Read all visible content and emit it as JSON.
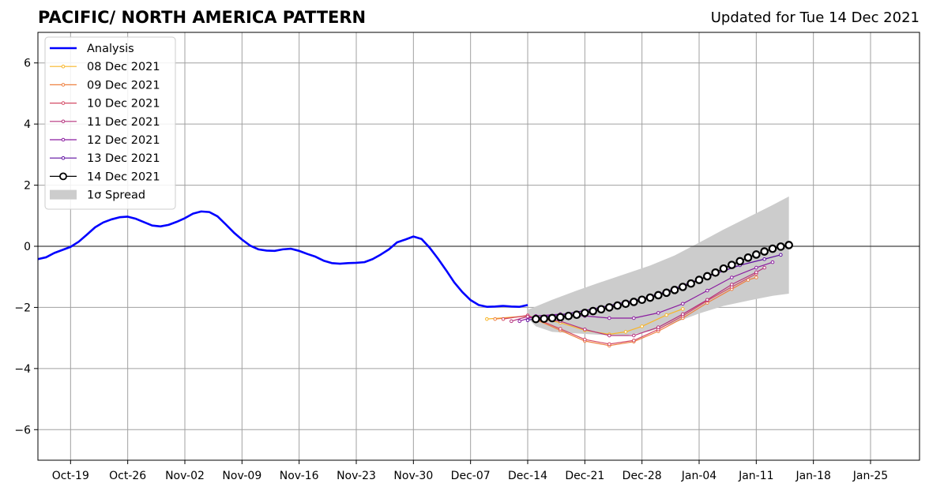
{
  "chart_data": {
    "type": "line",
    "title": "PACIFIC/ NORTH AMERICA PATTERN",
    "subtitle": "Updated for Tue 14 Dec 2021",
    "xlabel": "",
    "ylabel": "",
    "ylim": [
      -7,
      7
    ],
    "xlim": [
      "2021-10-15",
      "2022-01-31"
    ],
    "yticks": [
      "6",
      "4",
      "2",
      "0",
      "−2",
      "−4",
      "−6"
    ],
    "ytick_values": [
      6,
      4,
      2,
      0,
      -2,
      -4,
      -6
    ],
    "xticks": [
      "Oct-19",
      "Oct-26",
      "Nov-02",
      "Nov-09",
      "Nov-16",
      "Nov-23",
      "Nov-30",
      "Dec-07",
      "Dec-14",
      "Dec-21",
      "Dec-28",
      "Jan-04",
      "Jan-11",
      "Jan-18",
      "Jan-25"
    ],
    "xtick_dates": [
      "2021-10-19",
      "2021-10-26",
      "2021-11-02",
      "2021-11-09",
      "2021-11-16",
      "2021-11-23",
      "2021-11-30",
      "2021-12-07",
      "2021-12-14",
      "2021-12-21",
      "2021-12-28",
      "2022-01-04",
      "2022-01-11",
      "2022-01-18",
      "2022-01-25"
    ],
    "grid": true,
    "legend_position": "top-left",
    "legend": [
      "Analysis",
      "08 Dec 2021",
      "09 Dec 2021",
      "10 Dec 2021",
      "11 Dec 2021",
      "12 Dec 2021",
      "13 Dec 2021",
      "14 Dec 2021",
      "1σ Spread"
    ],
    "analysis": {
      "name": "Analysis",
      "color": "#0000ff",
      "points": [
        [
          "2021-10-15",
          -0.42
        ],
        [
          "2021-10-16",
          -0.36
        ],
        [
          "2021-10-17",
          -0.22
        ],
        [
          "2021-10-18",
          -0.12
        ],
        [
          "2021-10-19",
          -0.02
        ],
        [
          "2021-10-20",
          0.15
        ],
        [
          "2021-10-21",
          0.38
        ],
        [
          "2021-10-22",
          0.62
        ],
        [
          "2021-10-23",
          0.78
        ],
        [
          "2021-10-24",
          0.88
        ],
        [
          "2021-10-25",
          0.95
        ],
        [
          "2021-10-26",
          0.97
        ],
        [
          "2021-10-27",
          0.9
        ],
        [
          "2021-10-28",
          0.79
        ],
        [
          "2021-10-29",
          0.68
        ],
        [
          "2021-10-30",
          0.65
        ],
        [
          "2021-10-31",
          0.7
        ],
        [
          "2021-11-01",
          0.8
        ],
        [
          "2021-11-02",
          0.92
        ],
        [
          "2021-11-03",
          1.07
        ],
        [
          "2021-11-04",
          1.14
        ],
        [
          "2021-11-05",
          1.12
        ],
        [
          "2021-11-06",
          0.98
        ],
        [
          "2021-11-07",
          0.72
        ],
        [
          "2021-11-08",
          0.45
        ],
        [
          "2021-11-09",
          0.22
        ],
        [
          "2021-11-10",
          0.02
        ],
        [
          "2021-11-11",
          -0.1
        ],
        [
          "2021-11-12",
          -0.14
        ],
        [
          "2021-11-13",
          -0.15
        ],
        [
          "2021-11-14",
          -0.1
        ],
        [
          "2021-11-15",
          -0.08
        ],
        [
          "2021-11-16",
          -0.15
        ],
        [
          "2021-11-17",
          -0.25
        ],
        [
          "2021-11-18",
          -0.34
        ],
        [
          "2021-11-19",
          -0.47
        ],
        [
          "2021-11-20",
          -0.55
        ],
        [
          "2021-11-21",
          -0.57
        ],
        [
          "2021-11-22",
          -0.55
        ],
        [
          "2021-11-23",
          -0.54
        ],
        [
          "2021-11-24",
          -0.52
        ],
        [
          "2021-11-25",
          -0.42
        ],
        [
          "2021-11-26",
          -0.27
        ],
        [
          "2021-11-27",
          -0.1
        ],
        [
          "2021-11-28",
          0.13
        ],
        [
          "2021-11-29",
          0.22
        ],
        [
          "2021-11-30",
          0.32
        ],
        [
          "2021-12-01",
          0.24
        ],
        [
          "2021-12-02",
          -0.05
        ],
        [
          "2021-12-03",
          -0.4
        ],
        [
          "2021-12-04",
          -0.78
        ],
        [
          "2021-12-05",
          -1.18
        ],
        [
          "2021-12-06",
          -1.5
        ],
        [
          "2021-12-07",
          -1.76
        ],
        [
          "2021-12-08",
          -1.92
        ],
        [
          "2021-12-09",
          -1.98
        ],
        [
          "2021-12-10",
          -1.97
        ],
        [
          "2021-12-11",
          -1.95
        ],
        [
          "2021-12-12",
          -1.97
        ],
        [
          "2021-12-13",
          -1.98
        ],
        [
          "2021-12-14",
          -1.92
        ]
      ]
    },
    "forecasts": [
      {
        "name": "08 Dec 2021",
        "color": "#f8b528",
        "points": [
          [
            "2021-12-09",
            -2.38
          ],
          [
            "2021-12-14",
            -2.28
          ],
          [
            "2021-12-18",
            -2.5
          ],
          [
            "2021-12-21",
            -2.75
          ],
          [
            "2021-12-24",
            -2.88
          ],
          [
            "2021-12-26",
            -2.8
          ],
          [
            "2021-12-28",
            -2.62
          ],
          [
            "2021-12-31",
            -2.25
          ],
          [
            "2022-01-02",
            -2.05
          ]
        ]
      },
      {
        "name": "09 Dec 2021",
        "color": "#ee8040",
        "points": [
          [
            "2021-12-10",
            -2.38
          ],
          [
            "2021-12-14",
            -2.28
          ],
          [
            "2021-12-18",
            -2.75
          ],
          [
            "2021-12-21",
            -3.1
          ],
          [
            "2021-12-24",
            -3.25
          ],
          [
            "2021-12-27",
            -3.12
          ],
          [
            "2021-12-30",
            -2.78
          ],
          [
            "2022-01-02",
            -2.35
          ],
          [
            "2022-01-05",
            -1.85
          ],
          [
            "2022-01-08",
            -1.4
          ],
          [
            "2022-01-10",
            -1.1
          ],
          [
            "2022-01-11",
            -1.02
          ]
        ]
      },
      {
        "name": "10 Dec 2021",
        "color": "#d44b65",
        "points": [
          [
            "2021-12-11",
            -2.38
          ],
          [
            "2021-12-14",
            -2.26
          ],
          [
            "2021-12-18",
            -2.7
          ],
          [
            "2021-12-21",
            -3.05
          ],
          [
            "2021-12-24",
            -3.2
          ],
          [
            "2021-12-27",
            -3.08
          ],
          [
            "2021-12-30",
            -2.72
          ],
          [
            "2022-01-02",
            -2.28
          ],
          [
            "2022-01-05",
            -1.78
          ],
          [
            "2022-01-08",
            -1.33
          ],
          [
            "2022-01-11",
            -0.9
          ]
        ]
      },
      {
        "name": "11 Dec 2021",
        "color": "#b5327e",
        "points": [
          [
            "2021-12-12",
            -2.45
          ],
          [
            "2021-12-14",
            -2.3
          ],
          [
            "2021-12-18",
            -2.45
          ],
          [
            "2021-12-21",
            -2.72
          ],
          [
            "2021-12-24",
            -2.92
          ],
          [
            "2021-12-27",
            -2.92
          ],
          [
            "2021-12-30",
            -2.65
          ],
          [
            "2022-01-02",
            -2.22
          ],
          [
            "2022-01-05",
            -1.75
          ],
          [
            "2022-01-08",
            -1.25
          ],
          [
            "2022-01-11",
            -0.85
          ],
          [
            "2022-01-12",
            -0.7
          ]
        ]
      },
      {
        "name": "12 Dec 2021",
        "color": "#8b1ca0",
        "points": [
          [
            "2021-12-13",
            -2.45
          ],
          [
            "2021-12-15",
            -2.28
          ],
          [
            "2021-12-18",
            -2.22
          ],
          [
            "2021-12-21",
            -2.28
          ],
          [
            "2021-12-24",
            -2.35
          ],
          [
            "2021-12-27",
            -2.35
          ],
          [
            "2021-12-30",
            -2.18
          ],
          [
            "2022-01-02",
            -1.88
          ],
          [
            "2022-01-05",
            -1.45
          ],
          [
            "2022-01-08",
            -1.02
          ],
          [
            "2022-01-11",
            -0.7
          ],
          [
            "2022-01-13",
            -0.52
          ]
        ]
      },
      {
        "name": "13 Dec 2021",
        "color": "#5e0ea0",
        "points": [
          [
            "2021-12-14",
            -2.42
          ],
          [
            "2021-12-16",
            -2.3
          ],
          [
            "2021-12-19",
            -2.2
          ],
          [
            "2021-12-22",
            -2.05
          ],
          [
            "2021-12-25",
            -1.88
          ],
          [
            "2021-12-28",
            -1.72
          ],
          [
            "2021-12-31",
            -1.48
          ],
          [
            "2022-01-03",
            -1.18
          ],
          [
            "2022-01-06",
            -0.9
          ],
          [
            "2022-01-09",
            -0.62
          ],
          [
            "2022-01-12",
            -0.42
          ],
          [
            "2022-01-14",
            -0.28
          ]
        ]
      },
      {
        "name": "14 Dec 2021",
        "color": "#000000",
        "points": [
          [
            "2021-12-15",
            -2.38
          ],
          [
            "2021-12-16",
            -2.37
          ],
          [
            "2021-12-17",
            -2.35
          ],
          [
            "2021-12-18",
            -2.32
          ],
          [
            "2021-12-19",
            -2.28
          ],
          [
            "2021-12-20",
            -2.24
          ],
          [
            "2021-12-21",
            -2.18
          ],
          [
            "2021-12-22",
            -2.12
          ],
          [
            "2021-12-23",
            -2.06
          ],
          [
            "2021-12-24",
            -2.0
          ],
          [
            "2021-12-25",
            -1.94
          ],
          [
            "2021-12-26",
            -1.88
          ],
          [
            "2021-12-27",
            -1.82
          ],
          [
            "2021-12-28",
            -1.75
          ],
          [
            "2021-12-29",
            -1.68
          ],
          [
            "2021-12-30",
            -1.6
          ],
          [
            "2021-12-31",
            -1.52
          ],
          [
            "2022-01-01",
            -1.43
          ],
          [
            "2022-01-02",
            -1.33
          ],
          [
            "2022-01-03",
            -1.22
          ],
          [
            "2022-01-04",
            -1.1
          ],
          [
            "2022-01-05",
            -0.98
          ],
          [
            "2022-01-06",
            -0.86
          ],
          [
            "2022-01-07",
            -0.73
          ],
          [
            "2022-01-08",
            -0.61
          ],
          [
            "2022-01-09",
            -0.49
          ],
          [
            "2022-01-10",
            -0.37
          ],
          [
            "2022-01-11",
            -0.27
          ],
          [
            "2022-01-12",
            -0.17
          ],
          [
            "2022-01-13",
            -0.08
          ],
          [
            "2022-01-14",
            -0.01
          ],
          [
            "2022-01-15",
            0.04
          ]
        ]
      }
    ],
    "spread": {
      "name": "1σ Spread",
      "color": "#cccccc",
      "upper": [
        [
          "2021-12-14",
          -2.08
        ],
        [
          "2021-12-17",
          -1.75
        ],
        [
          "2021-12-20",
          -1.45
        ],
        [
          "2021-12-23",
          -1.17
        ],
        [
          "2021-12-26",
          -0.9
        ],
        [
          "2021-12-29",
          -0.63
        ],
        [
          "2022-01-01",
          -0.3
        ],
        [
          "2022-01-04",
          0.12
        ],
        [
          "2022-01-07",
          0.55
        ],
        [
          "2022-01-10",
          0.95
        ],
        [
          "2022-01-13",
          1.35
        ],
        [
          "2022-01-15",
          1.63
        ]
      ],
      "lower": [
        [
          "2021-12-14",
          -2.35
        ],
        [
          "2021-12-15",
          -2.62
        ],
        [
          "2021-12-17",
          -2.8
        ],
        [
          "2021-12-20",
          -2.85
        ],
        [
          "2021-12-23",
          -2.9
        ],
        [
          "2021-12-26",
          -2.92
        ],
        [
          "2021-12-29",
          -2.78
        ],
        [
          "2022-01-01",
          -2.5
        ],
        [
          "2022-01-04",
          -2.2
        ],
        [
          "2022-01-07",
          -1.95
        ],
        [
          "2022-01-10",
          -1.78
        ],
        [
          "2022-01-13",
          -1.62
        ],
        [
          "2022-01-15",
          -1.55
        ]
      ]
    }
  }
}
